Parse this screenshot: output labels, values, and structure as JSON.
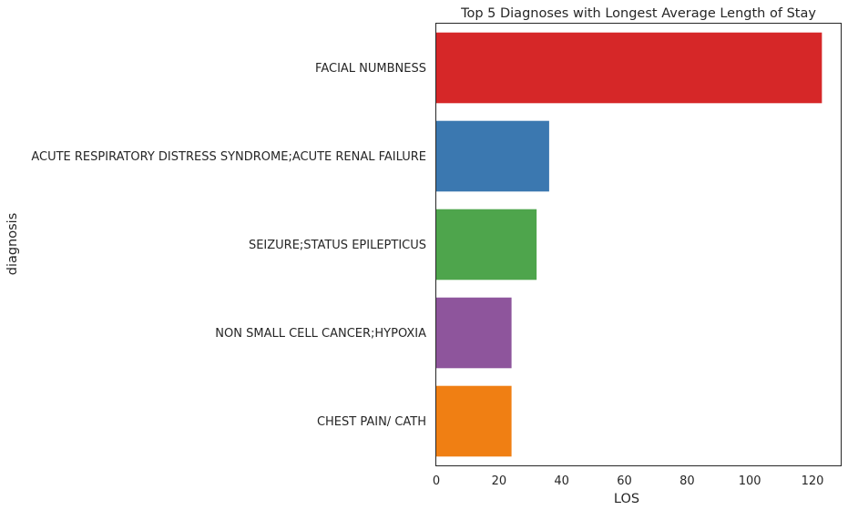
{
  "chart_data": {
    "type": "bar",
    "orientation": "horizontal",
    "title": "Top 5 Diagnoses with Longest Average Length of Stay",
    "xlabel": "LOS",
    "ylabel": "diagnosis",
    "categories": [
      "FACIAL NUMBNESS",
      "ACUTE RESPIRATORY DISTRESS SYNDROME;ACUTE RENAL FAILURE",
      "SEIZURE;STATUS EPILEPTICUS",
      "NON SMALL CELL CANCER;HYPOXIA",
      "CHEST PAIN/ CATH"
    ],
    "values": [
      123,
      36,
      32,
      24,
      24
    ],
    "colors": [
      "#d62728",
      "#3b78b0",
      "#4ea54c",
      "#8e559c",
      "#f07f13"
    ],
    "xlim": [
      0,
      129
    ],
    "xticks": [
      0,
      20,
      40,
      60,
      80,
      100,
      120
    ],
    "grid": false,
    "legend": "none"
  }
}
